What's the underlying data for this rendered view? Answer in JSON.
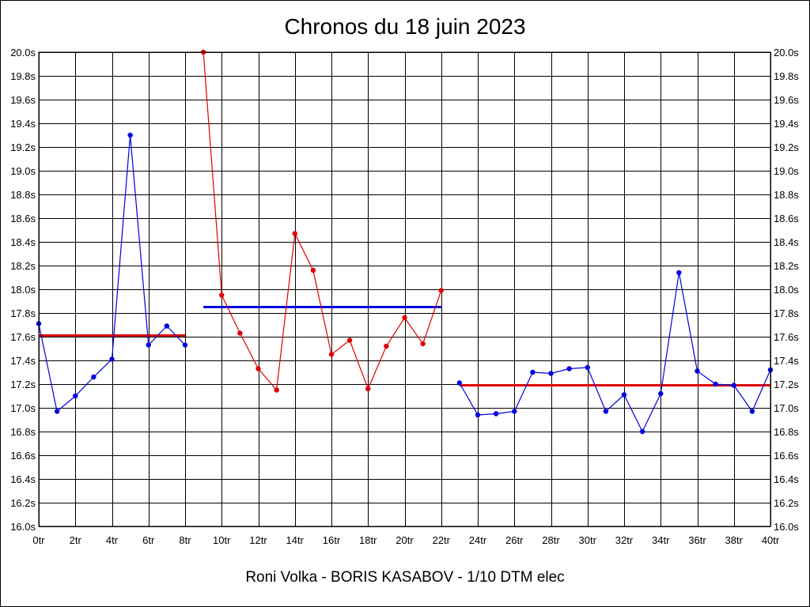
{
  "chart_data": {
    "type": "line",
    "title": "Chronos du 18 juin 2023",
    "footer": "Roni Volka - BORIS KASABOV - 1/10 DTM elec",
    "xlabel": "",
    "ylabel": "",
    "xlim": [
      0,
      40
    ],
    "ylim": [
      16.0,
      20.0
    ],
    "x_ticks": [
      "0tr",
      "2tr",
      "4tr",
      "6tr",
      "8tr",
      "10tr",
      "12tr",
      "14tr",
      "16tr",
      "18tr",
      "20tr",
      "22tr",
      "24tr",
      "26tr",
      "28tr",
      "30tr",
      "32tr",
      "34tr",
      "36tr",
      "38tr",
      "40tr"
    ],
    "y_ticks": [
      "16.0s",
      "16.2s",
      "16.4s",
      "16.6s",
      "16.8s",
      "17.0s",
      "17.2s",
      "17.4s",
      "17.6s",
      "17.8s",
      "18.0s",
      "18.2s",
      "18.4s",
      "18.6s",
      "18.8s",
      "19.0s",
      "19.2s",
      "19.4s",
      "19.6s",
      "19.8s",
      "20.0s"
    ],
    "grid": true,
    "series": [
      {
        "color": "#0000e0",
        "points": [
          [
            0,
            17.71
          ],
          [
            1,
            16.97
          ],
          [
            2,
            17.1
          ],
          [
            3,
            17.26
          ],
          [
            4,
            17.41
          ],
          [
            5,
            19.3
          ],
          [
            6,
            17.53
          ],
          [
            7,
            17.69
          ],
          [
            8,
            17.53
          ]
        ]
      },
      {
        "color": "#e00000",
        "points": [
          [
            9,
            20.0
          ],
          [
            10,
            17.95
          ],
          [
            11,
            17.63
          ],
          [
            12,
            17.33
          ],
          [
            13,
            17.15
          ],
          [
            14,
            18.47
          ],
          [
            15,
            18.16
          ],
          [
            16,
            17.45
          ],
          [
            17,
            17.57
          ],
          [
            18,
            17.16
          ],
          [
            19,
            17.52
          ],
          [
            20,
            17.76
          ],
          [
            21,
            17.54
          ],
          [
            22,
            17.99
          ]
        ]
      },
      {
        "color": "#0000e0",
        "points": [
          [
            23,
            17.21
          ],
          [
            24,
            16.94
          ],
          [
            25,
            16.95
          ],
          [
            26,
            16.97
          ],
          [
            27,
            17.3
          ],
          [
            28,
            17.29
          ],
          [
            29,
            17.33
          ],
          [
            30,
            17.34
          ],
          [
            31,
            16.97
          ],
          [
            32,
            17.11
          ],
          [
            33,
            16.8
          ],
          [
            34,
            17.12
          ],
          [
            35,
            18.14
          ],
          [
            36,
            17.31
          ],
          [
            37,
            17.2
          ],
          [
            38,
            17.19
          ],
          [
            39,
            16.97
          ],
          [
            40,
            17.32
          ]
        ]
      }
    ],
    "average_lines": [
      {
        "color": "#e00000",
        "x": [
          0,
          8
        ],
        "y": 17.61
      },
      {
        "color": "#0000e0",
        "x": [
          9,
          22
        ],
        "y": 17.85
      },
      {
        "color": "#e00000",
        "x": [
          23,
          40
        ],
        "y": 17.19
      }
    ]
  }
}
